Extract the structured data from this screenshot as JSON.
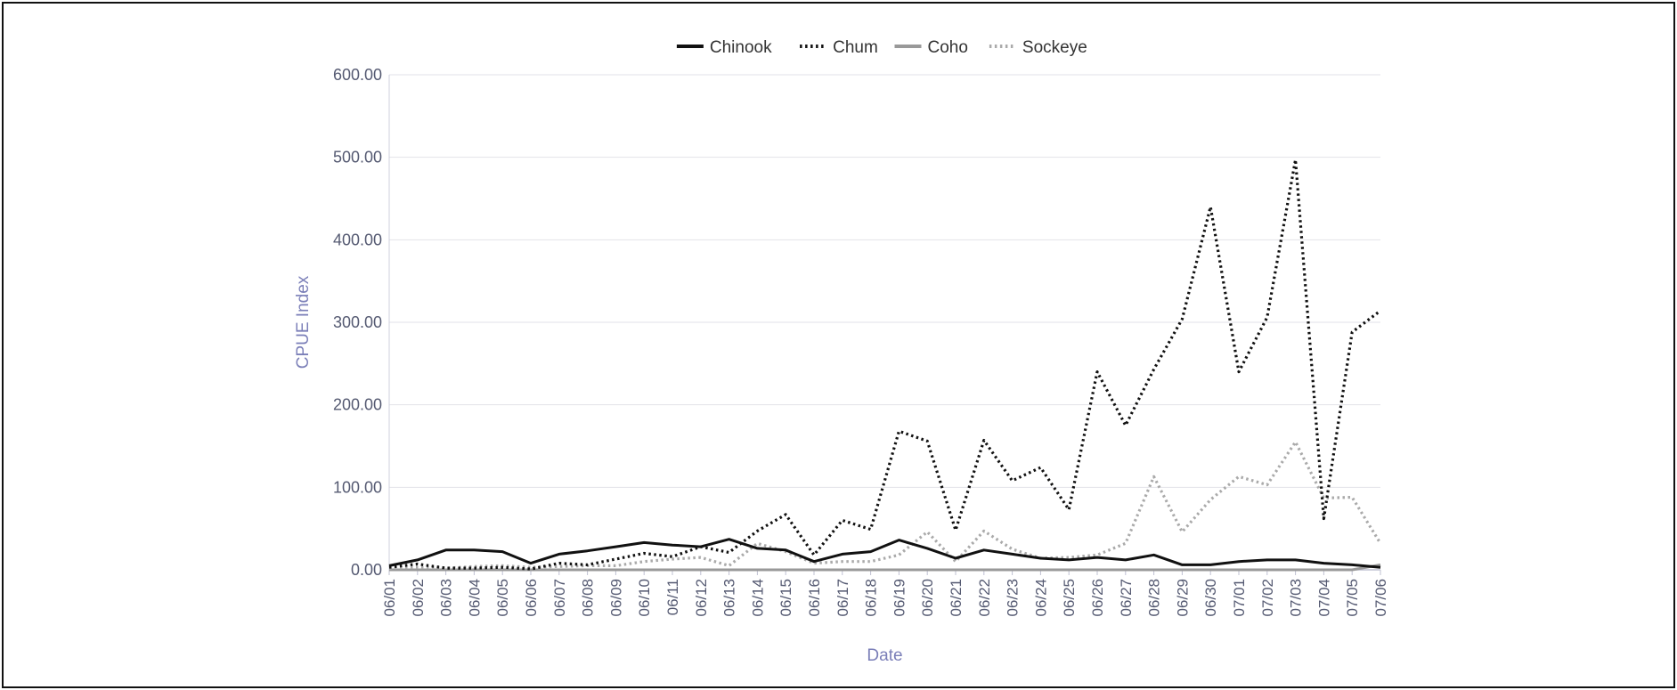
{
  "chart_data": {
    "type": "line",
    "xlabel": "Date",
    "ylabel": "CPUE Index",
    "ylim": [
      0,
      600
    ],
    "yticks": [
      "0.00",
      "100.00",
      "200.00",
      "300.00",
      "400.00",
      "500.00",
      "600.00"
    ],
    "grid": "horizontal",
    "legend_position": "top",
    "categories": [
      "06/01",
      "06/02",
      "06/03",
      "06/04",
      "06/05",
      "06/06",
      "06/07",
      "06/08",
      "06/09",
      "06/10",
      "06/11",
      "06/12",
      "06/13",
      "06/14",
      "06/15",
      "06/16",
      "06/17",
      "06/18",
      "06/19",
      "06/20",
      "06/21",
      "06/22",
      "06/23",
      "06/24",
      "06/25",
      "06/26",
      "06/27",
      "06/28",
      "06/29",
      "06/30",
      "07/01",
      "07/02",
      "07/03",
      "07/04",
      "07/05",
      "07/06"
    ],
    "series": [
      {
        "name": "Chinook",
        "color": "#111111",
        "style": "solid",
        "values": [
          5,
          12,
          24,
          24,
          22,
          8,
          19,
          23,
          28,
          33,
          30,
          28,
          37,
          26,
          24,
          10,
          19,
          22,
          36,
          26,
          14,
          24,
          19,
          14,
          12,
          15,
          12,
          18,
          6,
          6,
          10,
          12,
          12,
          8,
          6,
          3
        ]
      },
      {
        "name": "Chum",
        "color": "#111111",
        "style": "dotted",
        "values": [
          3,
          7,
          2,
          2,
          3,
          1,
          8,
          6,
          13,
          20,
          16,
          28,
          21,
          47,
          67,
          18,
          60,
          49,
          168,
          156,
          48,
          157,
          108,
          124,
          73,
          240,
          175,
          243,
          304,
          440,
          240,
          306,
          497,
          62,
          288,
          314
        ]
      },
      {
        "name": "Coho",
        "color": "#999999",
        "style": "solid",
        "values": [
          0,
          0,
          0,
          0,
          0,
          0,
          0,
          0,
          0,
          0,
          0,
          0,
          0,
          0,
          0,
          0,
          0,
          0,
          0,
          0,
          0,
          0,
          0,
          0,
          0,
          0,
          0,
          0,
          0,
          0,
          0,
          0,
          0,
          0,
          0,
          6
        ]
      },
      {
        "name": "Sockeye",
        "color": "#aaaaaa",
        "style": "dotted",
        "values": [
          2,
          3,
          2,
          4,
          5,
          3,
          4,
          5,
          5,
          10,
          13,
          15,
          5,
          32,
          22,
          8,
          10,
          10,
          18,
          46,
          10,
          47,
          25,
          14,
          15,
          18,
          32,
          113,
          46,
          85,
          113,
          103,
          155,
          87,
          88,
          32
        ]
      }
    ]
  }
}
